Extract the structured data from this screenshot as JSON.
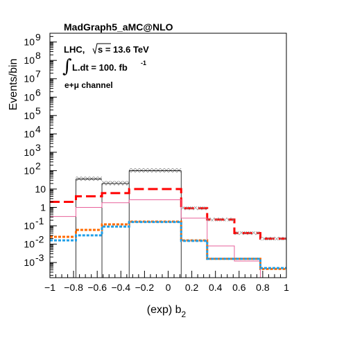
{
  "chart_data": {
    "type": "histogram",
    "title": "MadGraph5_aMC@NLO",
    "annotations": {
      "lhc": "LHC,",
      "sqrt_s": "s = 13.6 TeV",
      "lumi": "L.dt = 100. fb",
      "lumi_exp": "-1",
      "channel": "e+μ channel"
    },
    "xlabel": "(exp) b",
    "xlabel_sub": "2",
    "ylabel": "Events/bin",
    "xlim": [
      -1,
      1
    ],
    "ylim": [
      0.00015,
      3000000000
    ],
    "yscale": "log",
    "x_ticks": [
      "−1",
      "−0.8",
      "−0.6",
      "−0.4",
      "−0.2",
      "0",
      "0.2",
      "0.4",
      "0.6",
      "0.8",
      "1"
    ],
    "bin_edges": [
      -1.0,
      -0.78,
      -0.56,
      -0.33,
      -0.11,
      0.11,
      0.33,
      0.56,
      0.78,
      1.0
    ],
    "bin_edges_total": [
      -0.78,
      -0.56,
      -0.33,
      0.11
    ],
    "series": [
      {
        "name": "total",
        "color": "#000000",
        "style": "solid",
        "width": 0.8,
        "values": [
          35,
          20,
          100
        ],
        "band": true
      },
      {
        "name": "",
        "color": "#ff0000",
        "style": "dashed",
        "width": 3,
        "values": [
          2.0,
          4.0,
          6.0,
          10.0,
          10.0,
          0.9,
          0.22,
          0.04,
          0.02
        ]
      },
      {
        "name": "",
        "color": "#e8609a",
        "style": "solid",
        "width": 1,
        "values": [
          0.32,
          1.0,
          1.8,
          2.6,
          2.6,
          0.26,
          0.008,
          0.0012,
          0.00012
        ]
      },
      {
        "name": "",
        "color": "#ff6a00",
        "style": "dotted",
        "width": 3,
        "values": [
          0.025,
          0.06,
          0.12,
          0.17,
          0.17,
          0.016,
          0.0016,
          0.0016,
          0.00045
        ]
      },
      {
        "name": "",
        "color": "#1f9fe8",
        "style": "dotted",
        "width": 3,
        "values": [
          0.016,
          0.03,
          0.09,
          0.16,
          0.16,
          0.015,
          0.0016,
          0.0016,
          0.0005
        ]
      }
    ],
    "dashed_outer": {
      "color": "#555555",
      "values": [
        0.9,
        0.22,
        0.04,
        0.02
      ]
    },
    "grid": false,
    "legend": "none"
  }
}
